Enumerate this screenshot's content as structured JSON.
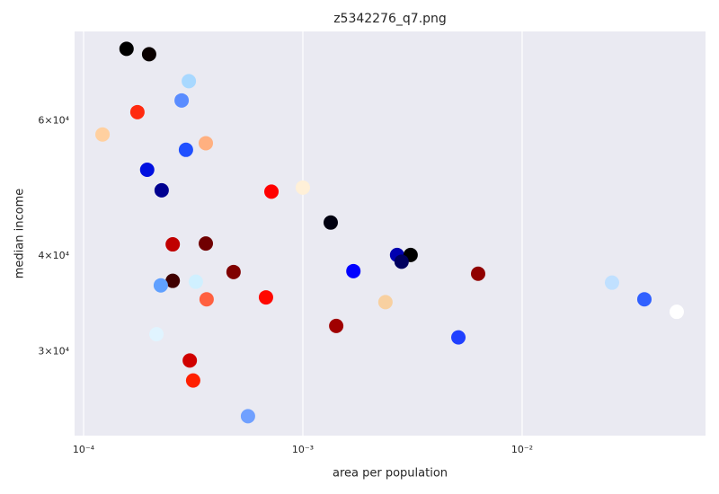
{
  "chart_data": {
    "type": "scatter",
    "title": "z5342276_q7.png",
    "x_label": "area per population",
    "y_label": "median income",
    "xscale": "log",
    "yscale": "log",
    "grid": "x",
    "xlim": [
      9.1e-05,
      0.0686
    ],
    "ylim": [
      23300,
      78500
    ],
    "xticks": [
      {
        "value": 0.0001,
        "label": "10⁻⁴"
      },
      {
        "value": 0.001,
        "label": "10⁻³"
      },
      {
        "value": 0.01,
        "label": "10⁻²"
      }
    ],
    "yticks": [
      {
        "value": 30000,
        "label": "3×10⁴"
      },
      {
        "value": 40000,
        "label": "4×10⁴"
      },
      {
        "value": 60000,
        "label": "6×10⁴"
      }
    ],
    "x": [
      0.000157,
      0.000199,
      0.000302,
      0.00028,
      0.000176,
      0.000122,
      0.000361,
      0.000293,
      0.000195,
      0.000227,
      0.000719,
      0.001,
      0.00134,
      0.000255,
      0.000361,
      0.00269,
      0.0031,
      0.00282,
      0.0017,
      0.000483,
      0.0063,
      0.000255,
      0.000325,
      0.000225,
      0.0257,
      0.000679,
      0.000364,
      0.00238,
      0.0361,
      0.0507,
      0.00142,
      0.000215,
      0.00512,
      0.000305,
      0.000316,
      0.000562
    ],
    "series": [
      {
        "values": [
          74500,
          73300,
          67600,
          63800,
          61600,
          57600,
          56100,
          55000,
          51800,
          48700,
          48500,
          49100,
          44200,
          41400,
          41500,
          40100,
          40100,
          39300,
          38200,
          38100,
          37900,
          37100,
          37000,
          36600,
          36900,
          35300,
          35100,
          34800,
          35100,
          33800,
          32400,
          31600,
          31300,
          29200,
          27500,
          24700
        ],
        "colors": [
          "#000000",
          "#0a0000",
          "#a8d8ff",
          "#5a8cff",
          "#ff2a10",
          "#ffd0a0",
          "#ffb080",
          "#2050ff",
          "#0010e0",
          "#000090",
          "#ff0000",
          "#fff0d8",
          "#000010",
          "#c00000",
          "#700000",
          "#0000b0",
          "#000000",
          "#000060",
          "#0000ff",
          "#800000",
          "#900000",
          "#400000",
          "#d0f0ff",
          "#60a0ff",
          "#c0e0ff",
          "#ff0800",
          "#ff6040",
          "#f8d0a0",
          "#3060ff",
          "#ffffff",
          "#a00000",
          "#e0f4ff",
          "#2040ff",
          "#d00000",
          "#ff2000",
          "#70a0ff"
        ]
      }
    ]
  }
}
